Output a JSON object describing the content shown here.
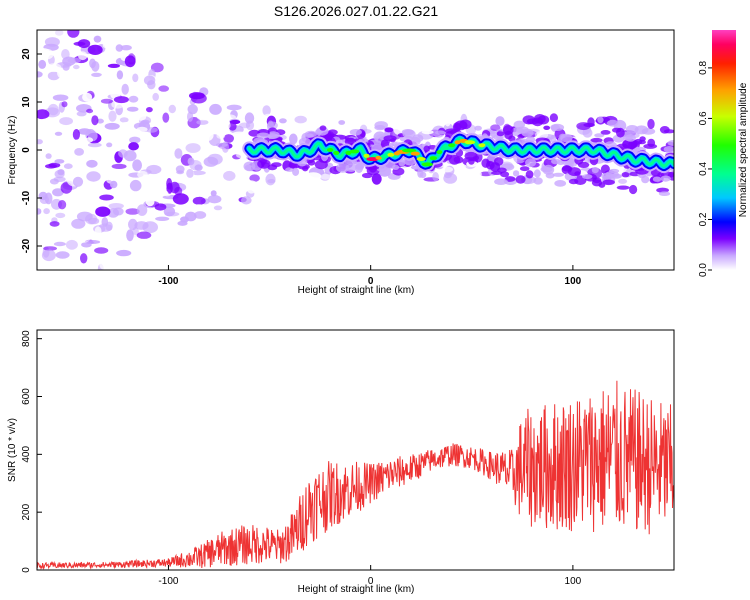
{
  "chart_data": [
    {
      "type": "heatmap",
      "title": "S126.2026.027.01.22.G21",
      "xlabel": "Height of straight line (km)",
      "ylabel": "Frequency (Hz)",
      "xlim": [
        -165,
        150
      ],
      "ylim": [
        -25,
        25
      ],
      "xticks": [
        -100,
        0,
        100
      ],
      "yticks": [
        -20,
        -10,
        0,
        10,
        20
      ],
      "colorbar": {
        "label": "Normalized spectral amplitude",
        "range": [
          0.0,
          0.95
        ],
        "ticks": [
          "0.0",
          "0.2",
          "0.4",
          "0.6",
          "0.8"
        ],
        "colors": [
          "#ffffff",
          "#c9a8ff",
          "#7b00ff",
          "#0000ff",
          "#00c8ff",
          "#00ff90",
          "#20ff00",
          "#c8ff00",
          "#ffa000",
          "#ff2000",
          "#ff0060",
          "#ff40c0"
        ]
      },
      "ridge": {
        "x": [
          -60,
          -45,
          -35,
          -25,
          -15,
          -5,
          0,
          10,
          20,
          28,
          35,
          45,
          55,
          70,
          90,
          110,
          130,
          150
        ],
        "freq": [
          0.0,
          0.0,
          -1.0,
          1.0,
          -1.0,
          0.0,
          -2.0,
          -1.0,
          0.0,
          -3.0,
          0.0,
          2.0,
          1.0,
          0.0,
          0.0,
          0.0,
          -2.0,
          -3.0
        ],
        "peak_amplitude": [
          0.3,
          0.3,
          0.4,
          0.45,
          0.5,
          0.55,
          0.9,
          0.7,
          0.8,
          0.5,
          0.6,
          0.75,
          0.6,
          0.4,
          0.35,
          0.3,
          0.3,
          0.25
        ]
      }
    },
    {
      "type": "line",
      "xlabel": "Height of straight line (km)",
      "ylabel": "SNR (10 * v/v)",
      "xlim": [
        -165,
        150
      ],
      "ylim": [
        0,
        830
      ],
      "xticks": [
        -100,
        0,
        100
      ],
      "yticks": [
        0,
        200,
        400,
        600,
        800
      ],
      "series": [
        {
          "name": "SNR",
          "color": "#ee3333",
          "envelope": {
            "x": [
              -165,
              -130,
              -100,
              -85,
              -75,
              -65,
              -55,
              -45,
              -38,
              -30,
              -20,
              -10,
              0,
              10,
              20,
              30,
              40,
              50,
              60,
              70,
              75,
              90,
              110,
              120,
              140,
              150
            ],
            "mean": [
              15,
              18,
              25,
              45,
              70,
              85,
              90,
              80,
              120,
              220,
              260,
              280,
              300,
              330,
              350,
              380,
              400,
              390,
              360,
              330,
              350,
              360,
              380,
              390,
              360,
              350
            ],
            "spread": [
              10,
              10,
              15,
              40,
              60,
              70,
              70,
              60,
              90,
              130,
              120,
              100,
              70,
              60,
              50,
              40,
              40,
              40,
              50,
              90,
              200,
              230,
              250,
              270,
              240,
              220
            ]
          }
        }
      ]
    }
  ]
}
